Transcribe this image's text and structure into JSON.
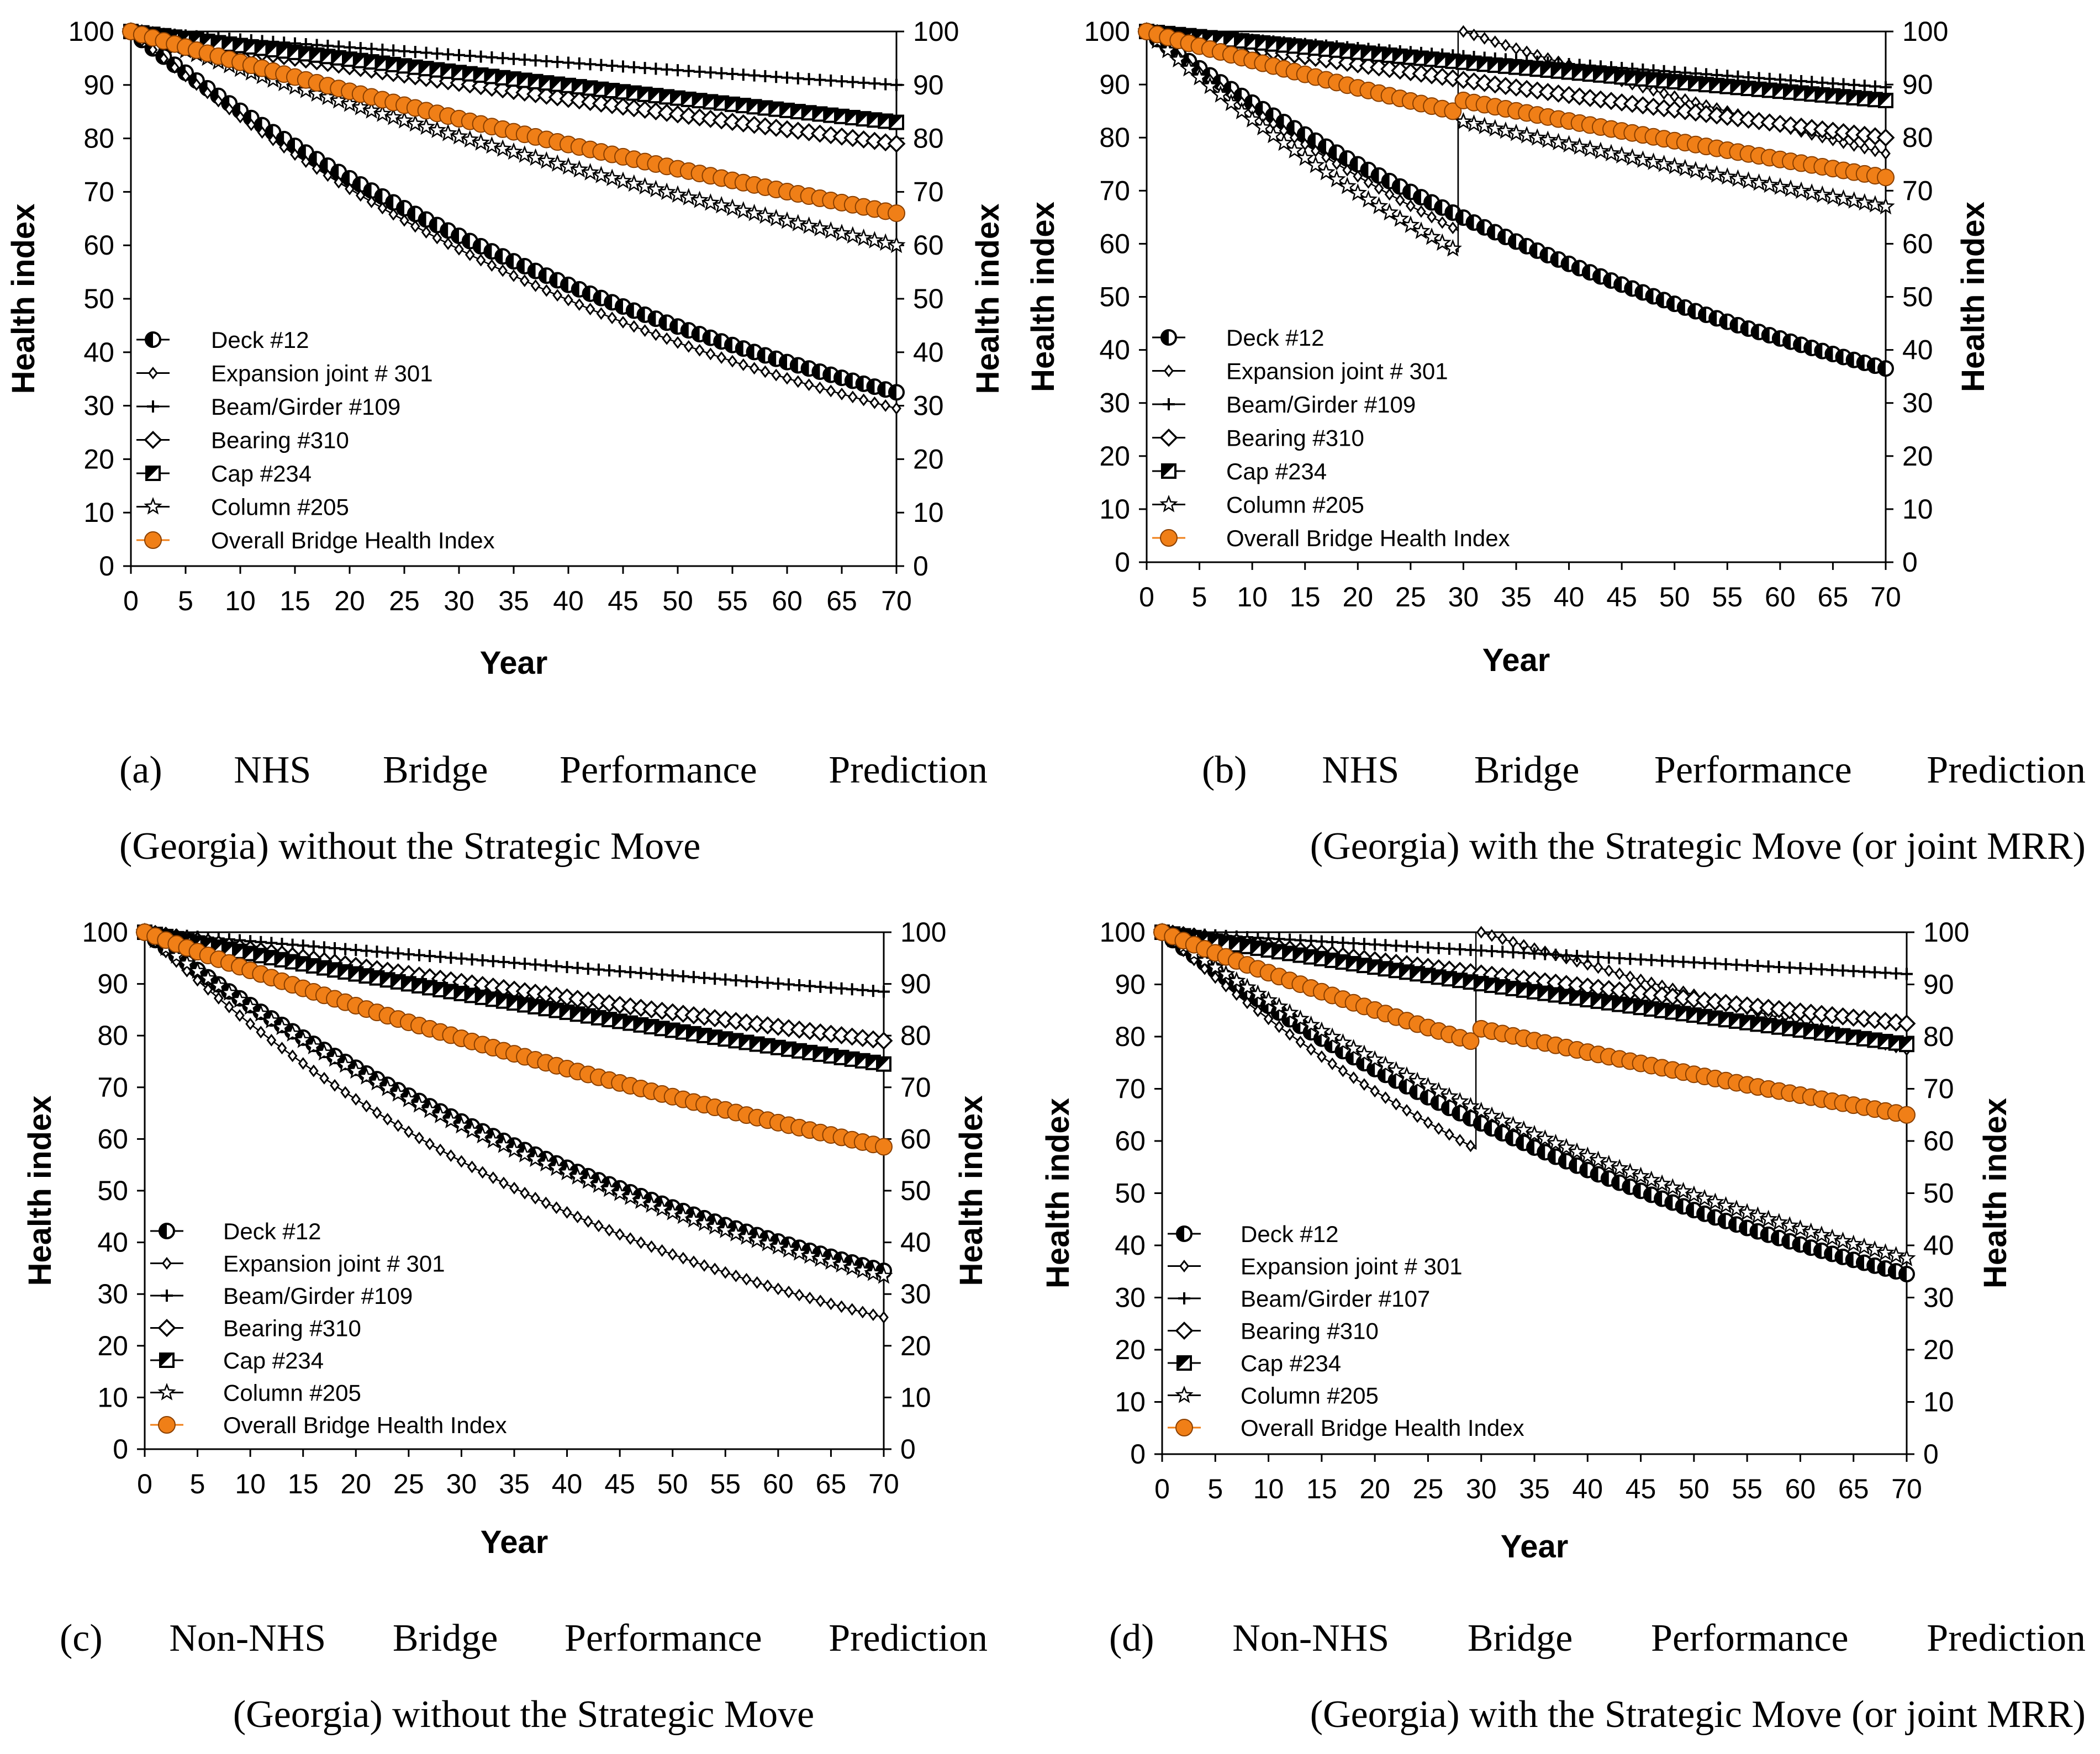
{
  "legend_labels": [
    "Deck #12",
    "Expansion joint # 301",
    "Beam/Girder #109",
    "Bearing #310",
    "Cap #234",
    "Column #205",
    "Overall Bridge Health Index"
  ],
  "legend_labels_d": [
    "Deck #12",
    "Expansion joint # 301",
    "Beam/Girder #107",
    "Bearing #310",
    "Cap #234",
    "Column #205",
    "Overall Bridge Health Index"
  ],
  "colors": {
    "overall": "#f07f17",
    "component": "#000000",
    "axis": "#000000"
  },
  "captions": {
    "a": {
      "line1": "(a)  NHS  Bridge  Performance  Prediction",
      "line2": "(Georgia) without the Strategic Move"
    },
    "b": {
      "line1": "(b)  NHS  Bridge  Performance  Prediction",
      "line2": "(Georgia) with the Strategic Move (or joint MRR)"
    },
    "c": {
      "line1": "(c)  Non-NHS  Bridge  Performance  Prediction",
      "line2": "(Georgia) without the Strategic Move"
    },
    "d": {
      "line1": "(d)  Non-NHS  Bridge  Performance  Prediction",
      "line2": "(Georgia) with the Strategic Move (or joint MRR)"
    }
  },
  "chart_data": [
    {
      "id": "a",
      "type": "line",
      "title": "",
      "xlabel": "Year",
      "ylabel": "Health index",
      "ylabel_right": "Health index",
      "xlim": [
        0,
        70
      ],
      "ylim": [
        0,
        100
      ],
      "xticks": [
        0,
        5,
        10,
        15,
        20,
        25,
        30,
        35,
        40,
        45,
        50,
        55,
        60,
        65,
        70
      ],
      "yticks": [
        0,
        10,
        20,
        30,
        40,
        50,
        60,
        70,
        80,
        90,
        100
      ],
      "grid": false,
      "legend_position": "bottom-left",
      "series": [
        {
          "name": "Deck #12",
          "marker": "half-circle",
          "curve": "exp",
          "start": 100,
          "end": 32.5
        },
        {
          "name": "Expansion joint # 301",
          "marker": "diamond-small",
          "curve": "exp",
          "start": 100,
          "end": 29.5
        },
        {
          "name": "Beam/Girder #109",
          "marker": "plus",
          "curve": "exp",
          "start": 100,
          "end": 90
        },
        {
          "name": "Bearing #310",
          "marker": "diamond",
          "curve": "exp",
          "start": 100,
          "end": 79
        },
        {
          "name": "Cap #234",
          "marker": "half-square",
          "curve": "exp",
          "start": 100,
          "end": 83
        },
        {
          "name": "Column #205",
          "marker": "star",
          "curve": "exp",
          "start": 100,
          "end": 60
        },
        {
          "name": "Overall Bridge Health Index",
          "marker": "orange-circle",
          "curve": "exp",
          "start": 100,
          "end": 66
        }
      ]
    },
    {
      "id": "b",
      "type": "line",
      "title": "",
      "xlabel": "Year",
      "ylabel": "Health index",
      "ylabel_right": "Health index",
      "xlim": [
        0,
        70
      ],
      "ylim": [
        0,
        100
      ],
      "xticks": [
        0,
        5,
        10,
        15,
        20,
        25,
        30,
        35,
        40,
        45,
        50,
        55,
        60,
        65,
        70
      ],
      "yticks": [
        0,
        10,
        20,
        30,
        40,
        50,
        60,
        70,
        80,
        90,
        100
      ],
      "grid": false,
      "legend_position": "bottom-left",
      "series": [
        {
          "name": "Deck #12",
          "marker": "half-circle",
          "curve": "exp",
          "start": 100,
          "end": 36.5
        },
        {
          "name": "Expansion joint # 301",
          "marker": "diamond-small",
          "curve": "reset",
          "start": 100,
          "value_at_reset": 62,
          "reset_year": 30,
          "reset_value": 100,
          "end": 77
        },
        {
          "name": "Beam/Girder #109",
          "marker": "plus",
          "curve": "exp",
          "start": 100,
          "end": 89.5
        },
        {
          "name": "Bearing #310",
          "marker": "diamond",
          "curve": "exp",
          "start": 100,
          "end": 80
        },
        {
          "name": "Cap #234",
          "marker": "half-square",
          "curve": "exp",
          "start": 100,
          "end": 87
        },
        {
          "name": "Column #205",
          "marker": "star",
          "curve": "reset",
          "start": 100,
          "value_at_reset": 58,
          "reset_year": 30,
          "reset_value": 83,
          "end": 67
        },
        {
          "name": "Overall Bridge Health Index",
          "marker": "orange-circle",
          "curve": "reset",
          "start": 100,
          "value_at_reset": 84.5,
          "reset_year": 30,
          "reset_value": 87,
          "end": 72.5
        }
      ]
    },
    {
      "id": "c",
      "type": "line",
      "title": "",
      "xlabel": "Year",
      "ylabel": "Health index",
      "ylabel_right": "Health index",
      "xlim": [
        0,
        70
      ],
      "ylim": [
        0,
        100
      ],
      "xticks": [
        0,
        5,
        10,
        15,
        20,
        25,
        30,
        35,
        40,
        45,
        50,
        55,
        60,
        65,
        70
      ],
      "yticks": [
        0,
        10,
        20,
        30,
        40,
        50,
        60,
        70,
        80,
        90,
        100
      ],
      "grid": false,
      "legend_position": "bottom-left",
      "series": [
        {
          "name": "Deck #12",
          "marker": "half-circle",
          "curve": "exp",
          "start": 100,
          "end": 34.5
        },
        {
          "name": "Expansion joint # 301",
          "marker": "diamond-small",
          "curve": "exp",
          "start": 100,
          "end": 25.5
        },
        {
          "name": "Beam/Girder #109",
          "marker": "plus",
          "curve": "exp",
          "start": 100,
          "end": 88.5
        },
        {
          "name": "Bearing #310",
          "marker": "diamond",
          "curve": "exp",
          "start": 100,
          "end": 79
        },
        {
          "name": "Cap #234",
          "marker": "half-square",
          "curve": "exp",
          "start": 100,
          "end": 74.5
        },
        {
          "name": "Column #205",
          "marker": "star",
          "curve": "exp",
          "start": 100,
          "end": 33.5
        },
        {
          "name": "Overall Bridge Health Index",
          "marker": "orange-circle",
          "curve": "exp",
          "start": 100,
          "end": 58.5
        }
      ]
    },
    {
      "id": "d",
      "type": "line",
      "title": "",
      "xlabel": "Year",
      "ylabel": "Health index",
      "ylabel_right": "Health index",
      "xlim": [
        0,
        70
      ],
      "ylim": [
        0,
        100
      ],
      "xticks": [
        0,
        5,
        10,
        15,
        20,
        25,
        30,
        35,
        40,
        45,
        50,
        55,
        60,
        65,
        70
      ],
      "yticks": [
        0,
        10,
        20,
        30,
        40,
        50,
        60,
        70,
        80,
        90,
        100
      ],
      "grid": false,
      "legend_position": "bottom-left",
      "series": [
        {
          "name": "Deck #12",
          "marker": "half-circle",
          "curve": "exp",
          "start": 100,
          "end": 34.5
        },
        {
          "name": "Expansion joint # 301",
          "marker": "diamond-small",
          "curve": "reset",
          "start": 100,
          "value_at_reset": 58,
          "reset_year": 30,
          "reset_value": 100,
          "end": 77.5
        },
        {
          "name": "Beam/Girder #107",
          "marker": "plus",
          "curve": "exp",
          "start": 100,
          "end": 92
        },
        {
          "name": "Bearing #310",
          "marker": "diamond",
          "curve": "exp",
          "start": 100,
          "end": 82.5
        },
        {
          "name": "Cap #234",
          "marker": "half-square",
          "curve": "exp",
          "start": 100,
          "end": 78.5
        },
        {
          "name": "Column #205",
          "marker": "star",
          "curve": "exp",
          "start": 100,
          "end": 37.5
        },
        {
          "name": "Overall Bridge Health Index",
          "marker": "orange-circle",
          "curve": "reset",
          "start": 100,
          "value_at_reset": 78.5,
          "reset_year": 30,
          "reset_value": 81.5,
          "end": 65
        }
      ]
    }
  ]
}
